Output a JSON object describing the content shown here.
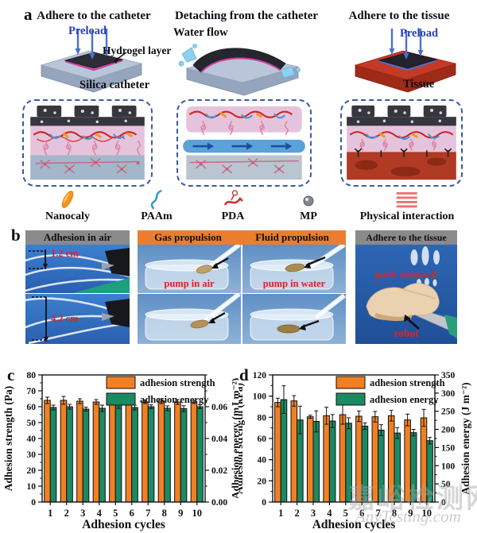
{
  "panels": {
    "a": "a",
    "b": "b",
    "c": "c",
    "d": "d"
  },
  "panel_a": {
    "titles": [
      "Adhere to the catheter",
      "Detaching from the catheter",
      "Adhere to the tissue"
    ],
    "labels": {
      "preload1": "Preload",
      "hydrogel": "Hydrogel layer",
      "silica": "Silica catheter",
      "water_flow": "Water flow",
      "preload2": "Preload",
      "tissue": "Tissue"
    },
    "legend": [
      {
        "icon": "nanoclay-icon",
        "label": "Nanocaly"
      },
      {
        "icon": "paam-chain-icon",
        "label": "PAAm"
      },
      {
        "icon": "pda-chain-icon",
        "label": "PDA"
      },
      {
        "icon": "mp-sphere-icon",
        "label": "MP"
      },
      {
        "icon": "physical-interaction-icon",
        "label": "Physical interaction"
      }
    ]
  },
  "panel_b": {
    "headers": [
      {
        "label": "Adhesion in air",
        "style": "gray"
      },
      {
        "label": "Gas propulsion",
        "style": "orange"
      },
      {
        "label": "Fluid propulsion",
        "style": "orange"
      },
      {
        "label": "Adhere to the tissue",
        "style": "gray"
      }
    ],
    "annotations": {
      "air_top": "1.2 cm",
      "air_bottom": "4.2 cm",
      "gas": "pump in air",
      "fluid": "pump in water",
      "tissue": "pork stomach",
      "robot": "robot"
    }
  },
  "chart_data": [
    {
      "id": "c",
      "type": "bar",
      "series": [
        {
          "name": "adhesion strength",
          "axis": "left",
          "color": "#f28022",
          "values": [
            64,
            64,
            63.5,
            63,
            63.5,
            63.5,
            63,
            63.5,
            63,
            63
          ],
          "errors": [
            2,
            2.5,
            1.5,
            1.5,
            1,
            1.5,
            1,
            1.5,
            1.5,
            1
          ]
        },
        {
          "name": "adhesion energy",
          "axis": "right",
          "color": "#1b8a63",
          "values": [
            0.0595,
            0.06,
            0.0585,
            0.059,
            0.061,
            0.0595,
            0.06,
            0.059,
            0.0588,
            0.06
          ],
          "errors": [
            0.0015,
            0.0015,
            0.0012,
            0.002,
            0.002,
            0.0015,
            0.0012,
            0.0015,
            0.0018,
            0.0012
          ]
        }
      ],
      "axes": {
        "x": {
          "label": "Adhesion cycles",
          "categories": [
            "1",
            "2",
            "3",
            "4",
            "5",
            "6",
            "7",
            "8",
            "9",
            "10"
          ]
        },
        "left": {
          "label": "Adhesion strength (Pa)",
          "min": 0,
          "max": 80,
          "ticks": [
            0,
            10,
            20,
            30,
            40,
            50,
            60,
            70,
            80
          ],
          "tick_labels": [
            "0",
            "10",
            "20",
            "30",
            "40",
            "50",
            "60",
            "70",
            "80"
          ],
          "minor_step": 5
        },
        "right": {
          "label": "Adhesion energy (mJ m⁻²)",
          "min": 0,
          "max": 0.08,
          "ticks": [
            0,
            0.02,
            0.04,
            0.06
          ],
          "tick_labels": [
            "0.00",
            "0.02",
            "0.04",
            "0.06"
          ],
          "minor_step": 0.01
        }
      },
      "legend_position": "top-right",
      "grid": false
    },
    {
      "id": "d",
      "type": "bar",
      "series": [
        {
          "name": "adhesion strength",
          "axis": "left",
          "color": "#f28022",
          "values": [
            94,
            95.5,
            80.5,
            81.5,
            82.5,
            81,
            80.5,
            81.5,
            77.5,
            79.5
          ],
          "errors": [
            4,
            5,
            1.5,
            8,
            9,
            5,
            5,
            5,
            5.5,
            8
          ]
        },
        {
          "name": "adhesion energy",
          "axis": "right",
          "color": "#1b8a63",
          "values": [
            282,
            226,
            222,
            223,
            217,
            209,
            198,
            190,
            191,
            169
          ],
          "errors": [
            38,
            38,
            29,
            18,
            15,
            9,
            15,
            15,
            9,
            9
          ]
        }
      ],
      "axes": {
        "x": {
          "label": "Adhesion cycles",
          "categories": [
            "1",
            "2",
            "3",
            "4",
            "5",
            "6",
            "7",
            "8",
            "9",
            "10"
          ]
        },
        "left": {
          "label": "Adhesion strength (kPa)",
          "min": 0,
          "max": 120,
          "ticks": [
            0,
            20,
            40,
            60,
            80,
            100,
            120
          ],
          "tick_labels": [
            "0",
            "20",
            "40",
            "60",
            "80",
            "100",
            "120"
          ],
          "minor_step": 10
        },
        "right": {
          "label": "Adhesion energy (J m⁻²)",
          "min": 0,
          "max": 350,
          "ticks": [
            0,
            50,
            100,
            150,
            200,
            250,
            300,
            350
          ],
          "tick_labels": [
            "0",
            "50",
            "100",
            "150",
            "200",
            "250",
            "300",
            "350"
          ],
          "minor_step": 25
        }
      },
      "legend_position": "top-right",
      "grid": false
    }
  ],
  "watermark": {
    "text_cn": "嘉峪检测网",
    "text_en": "AnyTesting.com"
  },
  "colors": {
    "strength_orange": "#f28022",
    "energy_green": "#1b8a63",
    "header_gray": "#8a8a8a",
    "header_orange": "#ec7d2e",
    "annotation_red": "#e32024",
    "preload_blue": "#2a3fb8",
    "dashed_box_blue": "#3a5aa8"
  }
}
